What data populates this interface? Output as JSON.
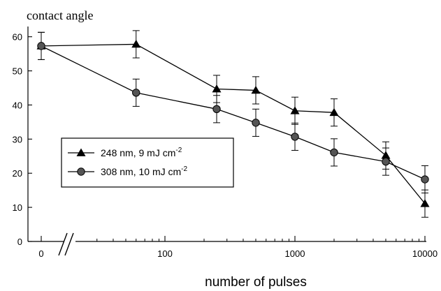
{
  "chart_data": {
    "type": "line",
    "ylabel": "contact angle",
    "xlabel": "number of pulses",
    "x_scale": "log",
    "x_break": true,
    "x_ticks": [
      {
        "value": 0,
        "label": "0"
      },
      {
        "value": 100,
        "label": "100"
      },
      {
        "value": 1000,
        "label": "1000"
      },
      {
        "value": 10000,
        "label": "10000"
      }
    ],
    "y_ticks": [
      0,
      10,
      20,
      30,
      40,
      50,
      60
    ],
    "ylim": [
      0,
      63
    ],
    "grid": false,
    "legend_position": "center-left",
    "series": [
      {
        "name": "248 nm, 9 mJ cm",
        "name_superscript": "-2",
        "marker": "triangle",
        "points": [
          {
            "x": 0,
            "y": 57.3,
            "err": 4
          },
          {
            "x": 60,
            "y": 57.8,
            "err": 4
          },
          {
            "x": 250,
            "y": 44.7,
            "err": 4
          },
          {
            "x": 500,
            "y": 44.3,
            "err": 4
          },
          {
            "x": 1000,
            "y": 38.3,
            "err": 4
          },
          {
            "x": 2000,
            "y": 37.8,
            "err": 4
          },
          {
            "x": 5000,
            "y": 25.2,
            "err": 4
          },
          {
            "x": 10000,
            "y": 11.1,
            "err": 4
          }
        ]
      },
      {
        "name": "308 nm, 10 mJ cm",
        "name_superscript": "-2",
        "marker": "circle",
        "points": [
          {
            "x": 0,
            "y": 57.3,
            "err": 4
          },
          {
            "x": 60,
            "y": 43.6,
            "err": 4
          },
          {
            "x": 250,
            "y": 38.8,
            "err": 4
          },
          {
            "x": 500,
            "y": 34.8,
            "err": 4
          },
          {
            "x": 1000,
            "y": 30.7,
            "err": 4
          },
          {
            "x": 2000,
            "y": 26.1,
            "err": 4
          },
          {
            "x": 5000,
            "y": 23.4,
            "err": 4
          },
          {
            "x": 10000,
            "y": 18.2,
            "err": 4
          }
        ]
      }
    ]
  }
}
